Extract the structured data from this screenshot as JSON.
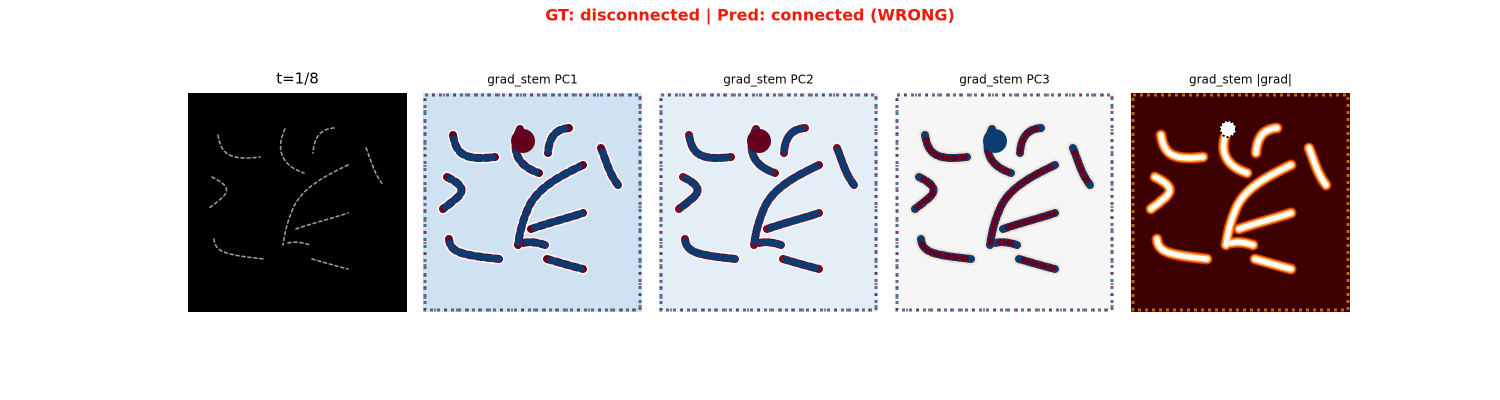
{
  "title": "GT: disconnected | Pred: connected (WRONG)",
  "panels": [
    {
      "title": "t=1/8"
    },
    {
      "title": "grad_stem PC1"
    },
    {
      "title": "grad_stem PC2"
    },
    {
      "title": "grad_stem PC3"
    },
    {
      "title": "grad_stem |grad|"
    }
  ]
}
